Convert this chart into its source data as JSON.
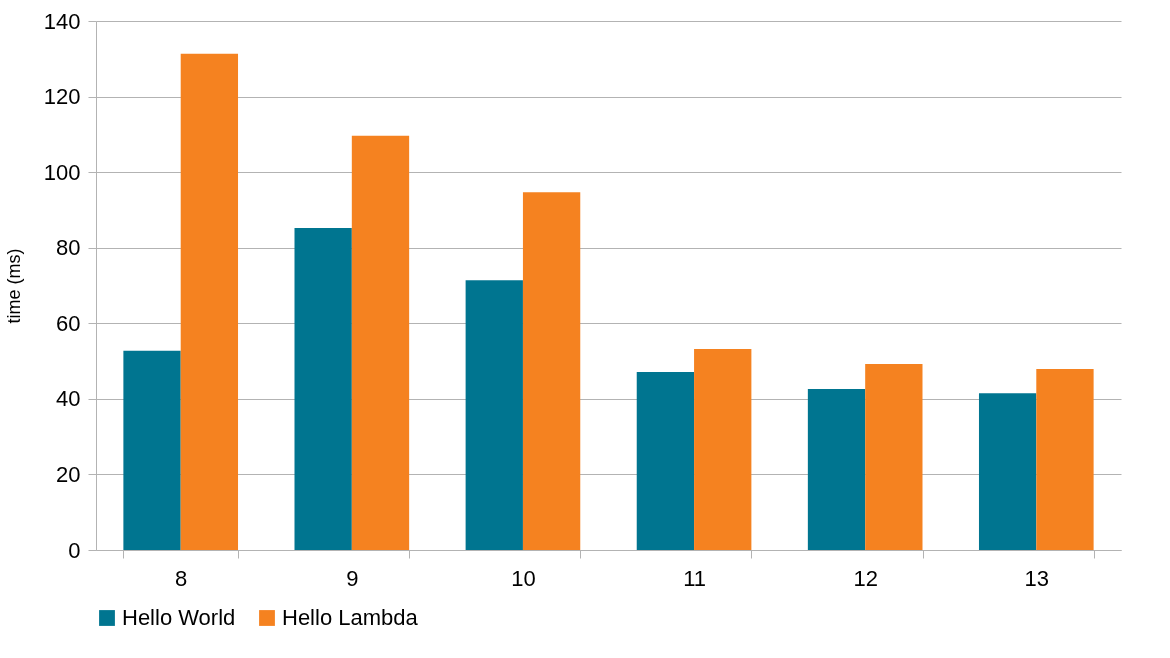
{
  "chart_data": {
    "type": "bar",
    "ylabel": "time (ms)",
    "categories": [
      "8",
      "9",
      "10",
      "11",
      "12",
      "13"
    ],
    "series": [
      {
        "name": "Hello World",
        "color": "#007590",
        "values": [
          52.7,
          85.2,
          71.4,
          47.1,
          42.6,
          41.5
        ]
      },
      {
        "name": "Hello Lambda",
        "color": "#f58220",
        "values": [
          131.3,
          109.6,
          94.7,
          53.2,
          49.2,
          47.9
        ]
      }
    ],
    "ylim": [
      0,
      140
    ],
    "yticks": [
      0,
      20,
      40,
      60,
      80,
      100,
      120,
      140
    ],
    "grid": "y",
    "legend": "bottom"
  }
}
